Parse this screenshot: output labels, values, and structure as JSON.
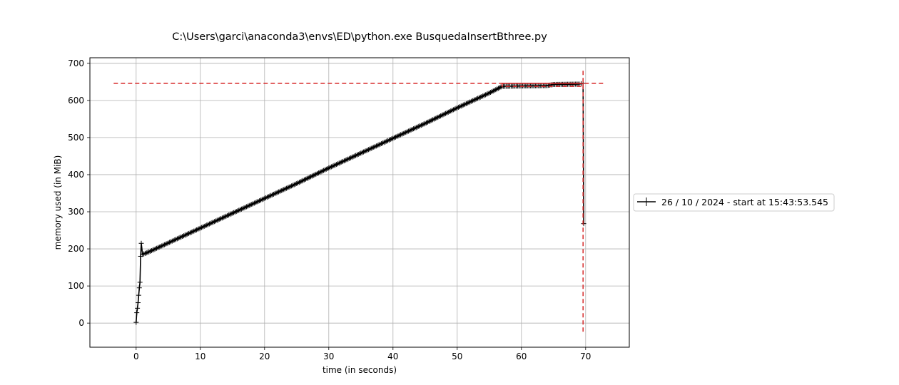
{
  "chart_data": {
    "type": "line",
    "title": "C:\\Users\\garci\\anaconda3\\envs\\ED\\python.exe BusquedaInsertBthree.py",
    "xlabel": "time (in seconds)",
    "ylabel": "memory used (in MiB)",
    "xlim": [
      -7.2,
      76.8
    ],
    "ylim": [
      -65,
      715
    ],
    "xticks": [
      0,
      10,
      20,
      30,
      40,
      50,
      60,
      70
    ],
    "yticks": [
      0,
      100,
      200,
      300,
      400,
      500,
      600,
      700
    ],
    "grid": true,
    "legend_position": "right-outside",
    "series": [
      {
        "name": "26 / 10 / 2024 - start at 15:43:53.545",
        "color": "#000000",
        "marker": "+",
        "points": [
          [
            0.0,
            2
          ],
          [
            0.1,
            28
          ],
          [
            0.2,
            40
          ],
          [
            0.3,
            55
          ],
          [
            0.4,
            75
          ],
          [
            0.5,
            95
          ],
          [
            0.6,
            110
          ],
          [
            0.7,
            180
          ],
          [
            0.8,
            215
          ],
          [
            1.0,
            185
          ],
          [
            2,
            192
          ],
          [
            3,
            200
          ],
          [
            5,
            216
          ],
          [
            10,
            256
          ],
          [
            15,
            296
          ],
          [
            20,
            336
          ],
          [
            25,
            376
          ],
          [
            30,
            418
          ],
          [
            35,
            458
          ],
          [
            40,
            498
          ],
          [
            45,
            538
          ],
          [
            50,
            580
          ],
          [
            55,
            620
          ],
          [
            57,
            638
          ],
          [
            60,
            639
          ],
          [
            64,
            640
          ],
          [
            65,
            643
          ],
          [
            69,
            644
          ],
          [
            69.6,
            646
          ],
          [
            69.7,
            268
          ]
        ]
      }
    ],
    "annotations": [
      {
        "kind": "max-memory-hline",
        "y": 646,
        "x_range": [
          -3.5,
          73.0
        ],
        "color": "#d62728",
        "style": "dashed"
      },
      {
        "kind": "max-time-vline",
        "x": 69.6,
        "y_range": [
          -30,
          680
        ],
        "color": "#d62728",
        "style": "dashed"
      },
      {
        "kind": "bracket-rect",
        "x_range": [
          57.0,
          69.6
        ],
        "y_range": [
          638,
          646
        ],
        "color": "#d62728",
        "style": "dashed"
      }
    ]
  }
}
